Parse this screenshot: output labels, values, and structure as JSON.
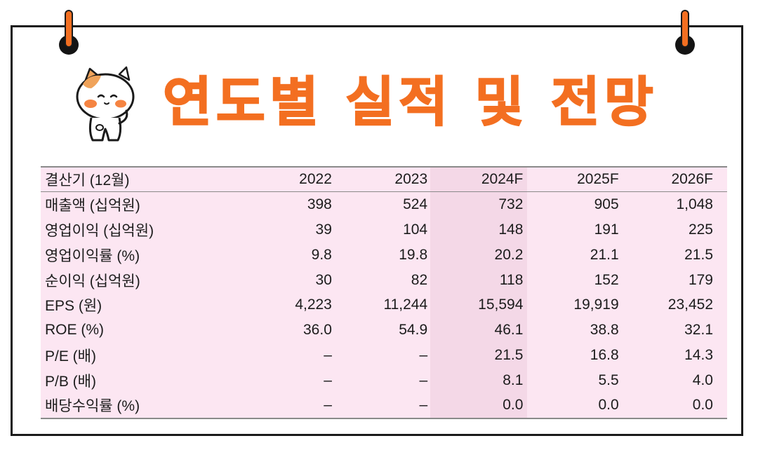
{
  "title": "연도별 실적 및 전망",
  "colors": {
    "accent": "#f36f21",
    "table_bg": "#fce6f2",
    "highlight_col": "#f4d8e7"
  },
  "icons": [
    "binder-pin-icon",
    "cat-mascot-icon"
  ],
  "table": {
    "headers": [
      "결산기 (12월)",
      "2022",
      "2023",
      "2024F",
      "2025F",
      "2026F"
    ],
    "rows": [
      [
        "매출액 (십억원)",
        "398",
        "524",
        "732",
        "905",
        "1,048"
      ],
      [
        "영업이익 (십억원)",
        "39",
        "104",
        "148",
        "191",
        "225"
      ],
      [
        "영업이익률 (%)",
        "9.8",
        "19.8",
        "20.2",
        "21.1",
        "21.5"
      ],
      [
        "순이익 (십억원)",
        "30",
        "82",
        "118",
        "152",
        "179"
      ],
      [
        "EPS (원)",
        "4,223",
        "11,244",
        "15,594",
        "19,919",
        "23,452"
      ],
      [
        "ROE (%)",
        "36.0",
        "54.9",
        "46.1",
        "38.8",
        "32.1"
      ],
      [
        "P/E (배)",
        "–",
        "–",
        "21.5",
        "16.8",
        "14.3"
      ],
      [
        "P/B (배)",
        "–",
        "–",
        "8.1",
        "5.5",
        "4.0"
      ],
      [
        "배당수익률 (%)",
        "–",
        "–",
        "0.0",
        "0.0",
        "0.0"
      ]
    ]
  }
}
